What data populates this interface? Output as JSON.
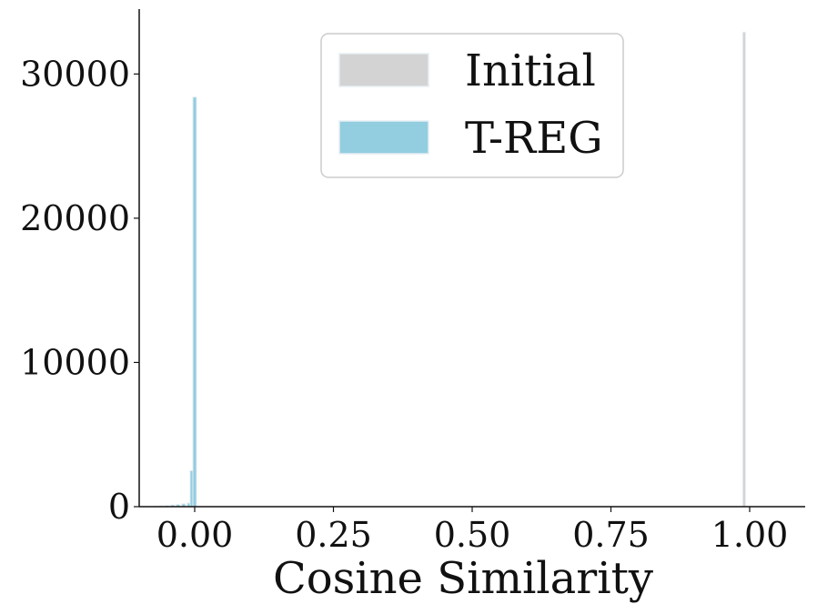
{
  "chart_data": {
    "type": "bar",
    "xlabel": "Cosine Similarity",
    "ylabel": "",
    "xlim": [
      -0.1,
      1.1
    ],
    "ylim": [
      0,
      34500
    ],
    "xticks": [
      "0.00",
      "0.25",
      "0.50",
      "0.75",
      "1.00"
    ],
    "xtick_values": [
      0,
      0.25,
      0.5,
      0.75,
      1.0
    ],
    "yticks": [
      "0",
      "10000",
      "20000",
      "30000"
    ],
    "ytick_values": [
      0,
      10000,
      20000,
      30000
    ],
    "grid": false,
    "legend_position": "top-center",
    "series": [
      {
        "name": "Initial",
        "color": "#d3d3d3",
        "bin_width": 0.01,
        "bins": [
          {
            "x": 0.99,
            "value": 32900
          }
        ]
      },
      {
        "name": "T-REG",
        "color": "#92cde0",
        "bin_width": 0.01,
        "bins": [
          {
            "x": -0.07,
            "value": 40
          },
          {
            "x": -0.06,
            "value": 60
          },
          {
            "x": -0.05,
            "value": 80
          },
          {
            "x": -0.04,
            "value": 120
          },
          {
            "x": -0.03,
            "value": 150
          },
          {
            "x": -0.02,
            "value": 200
          },
          {
            "x": -0.01,
            "value": 250
          },
          {
            "x": -0.005,
            "value": 2500
          },
          {
            "x": 0.0,
            "value": 28400
          }
        ]
      }
    ]
  }
}
